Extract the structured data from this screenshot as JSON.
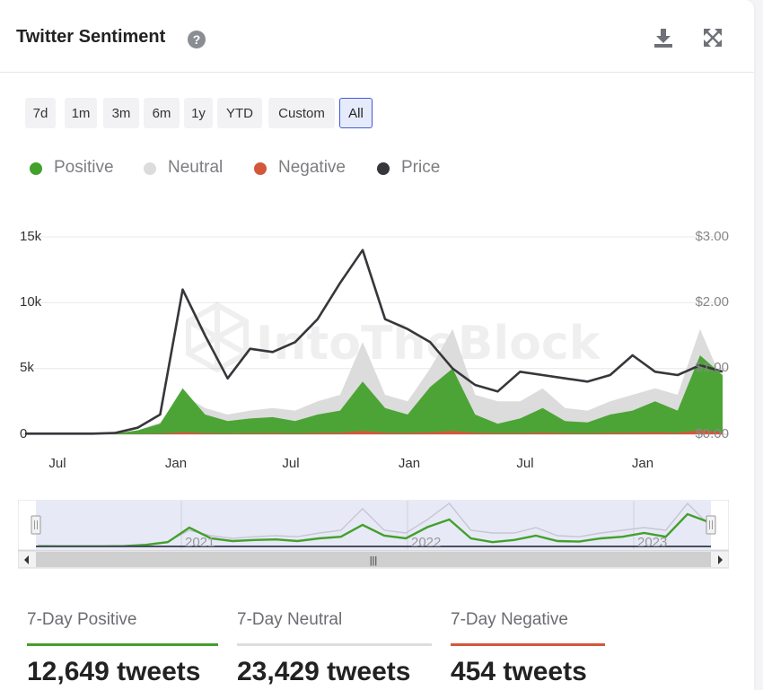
{
  "header": {
    "title": "Twitter Sentiment",
    "help_icon": "question-circle-icon",
    "download_icon": "download-icon",
    "expand_icon": "expand-icon"
  },
  "range_buttons": [
    {
      "label": "7d",
      "active": false
    },
    {
      "label": "1m",
      "active": false
    },
    {
      "label": "3m",
      "active": false
    },
    {
      "label": "6m",
      "active": false
    },
    {
      "label": "1y",
      "active": false
    },
    {
      "label": "YTD",
      "active": false
    },
    {
      "label": "Custom",
      "active": false
    },
    {
      "label": "All",
      "active": true
    }
  ],
  "legend": [
    {
      "label": "Positive",
      "color": "#43a02c"
    },
    {
      "label": "Neutral",
      "color": "#dcdcdc"
    },
    {
      "label": "Negative",
      "color": "#d4573c"
    },
    {
      "label": "Price",
      "color": "#35373b"
    }
  ],
  "watermark": "IntoTheBlock",
  "chart_data": {
    "type": "area",
    "x_axis": {
      "type": "datetime",
      "ticks": [
        "Jul",
        "Jan",
        "Jul",
        "Jan",
        "Jul",
        "Jan"
      ]
    },
    "y_axis_left": {
      "ticks": [
        "0",
        "5k",
        "10k",
        "15k"
      ],
      "range": [
        0,
        15000
      ]
    },
    "y_axis_right": {
      "ticks": [
        "$0.00",
        "$1.00",
        "$2.00",
        "$3.00"
      ],
      "range": [
        0,
        3
      ]
    },
    "grid": true,
    "legend_position": "top-left",
    "x": [
      "2020-05",
      "2020-07",
      "2020-09",
      "2020-11",
      "2021-01",
      "2021-02",
      "2021-03",
      "2021-04",
      "2021-05",
      "2021-06",
      "2021-07",
      "2021-08",
      "2021-09",
      "2021-10",
      "2021-11",
      "2021-12",
      "2022-01",
      "2022-02",
      "2022-03",
      "2022-04",
      "2022-05",
      "2022-06",
      "2022-07",
      "2022-08",
      "2022-09",
      "2022-10",
      "2022-11",
      "2022-12",
      "2023-01",
      "2023-02",
      "2023-03",
      "2023-04"
    ],
    "series": [
      {
        "name": "Positive",
        "values": [
          50,
          40,
          30,
          30,
          60,
          300,
          800,
          3500,
          1500,
          1000,
          1200,
          1300,
          1000,
          1500,
          1800,
          4000,
          2000,
          1500,
          3600,
          5000,
          1500,
          800,
          1200,
          2000,
          1000,
          900,
          1500,
          1800,
          2500,
          1800,
          6000,
          4500
        ]
      },
      {
        "name": "Neutral",
        "values": [
          100,
          80,
          60,
          60,
          100,
          300,
          900,
          3000,
          2000,
          1500,
          1800,
          2000,
          1800,
          2500,
          3000,
          7000,
          3000,
          2500,
          5000,
          8000,
          3000,
          2500,
          2500,
          3500,
          2000,
          1800,
          2500,
          3000,
          3500,
          3000,
          8000,
          4000
        ]
      },
      {
        "name": "Negative",
        "values": [
          5,
          5,
          5,
          5,
          10,
          20,
          40,
          150,
          80,
          60,
          70,
          80,
          60,
          100,
          120,
          250,
          120,
          100,
          150,
          250,
          120,
          80,
          90,
          120,
          80,
          70,
          100,
          120,
          150,
          120,
          300,
          150
        ]
      },
      {
        "name": "Price",
        "values": [
          0.01,
          0.01,
          0.01,
          0.01,
          0.02,
          0.1,
          0.3,
          2.2,
          1.5,
          0.85,
          1.3,
          1.25,
          1.4,
          1.75,
          2.3,
          2.8,
          1.75,
          1.6,
          1.4,
          1.0,
          0.75,
          0.65,
          0.95,
          0.9,
          0.85,
          0.8,
          0.9,
          1.2,
          0.95,
          0.9,
          1.05,
          0.95
        ]
      }
    ]
  },
  "navigator": {
    "year_labels": [
      "2021",
      "2022",
      "2023"
    ],
    "scroll_grip": "|||"
  },
  "stats": [
    {
      "label": "7-Day Positive",
      "value": "12,649 tweets",
      "color": "#43a02c"
    },
    {
      "label": "7-Day Neutral",
      "value": "23,429 tweets",
      "color": "#dddddd"
    },
    {
      "label": "7-Day Negative",
      "value": "454 tweets",
      "color": "#d4573c"
    }
  ]
}
